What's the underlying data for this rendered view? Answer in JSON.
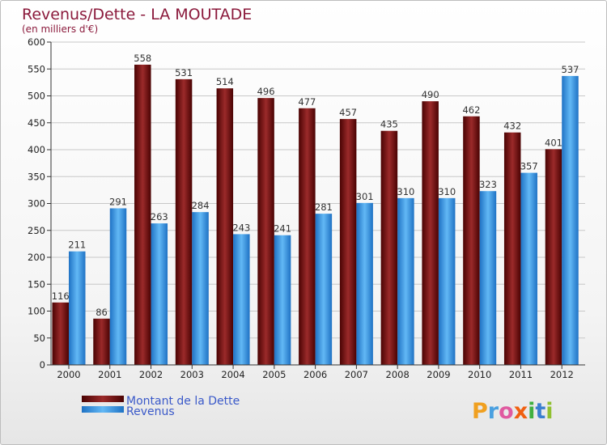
{
  "chart_data": {
    "type": "bar",
    "title": "Revenus/Dette - LA MOUTADE",
    "subtitle": "(en milliers d'€)",
    "categories": [
      "2000",
      "2001",
      "2002",
      "2003",
      "2004",
      "2005",
      "2006",
      "2007",
      "2008",
      "2009",
      "2010",
      "2011",
      "2012"
    ],
    "series": [
      {
        "name": "Montant de la Dette",
        "color": "#7a1010",
        "values": [
          116,
          86,
          558,
          531,
          514,
          496,
          477,
          457,
          435,
          490,
          462,
          432,
          401
        ]
      },
      {
        "name": "Revenus",
        "color": "#3d9be3",
        "values": [
          211,
          291,
          263,
          284,
          243,
          241,
          281,
          301,
          310,
          310,
          323,
          357,
          537
        ]
      }
    ],
    "ylim": [
      0,
      600
    ],
    "yticks": [
      0,
      50,
      100,
      150,
      200,
      250,
      300,
      350,
      400,
      450,
      500,
      550,
      600
    ],
    "grid": true,
    "legend": "bottom-left"
  },
  "logo": {
    "letters": [
      {
        "ch": "P",
        "color": "#f0a020"
      },
      {
        "ch": "r",
        "color": "#4aa0e0"
      },
      {
        "ch": "o",
        "color": "#e05aa0"
      },
      {
        "ch": "x",
        "color": "#f06010"
      },
      {
        "ch": "i",
        "color": "#40b040"
      },
      {
        "ch": "t",
        "color": "#3a7fd0"
      },
      {
        "ch": "i",
        "color": "#90c030"
      }
    ]
  }
}
